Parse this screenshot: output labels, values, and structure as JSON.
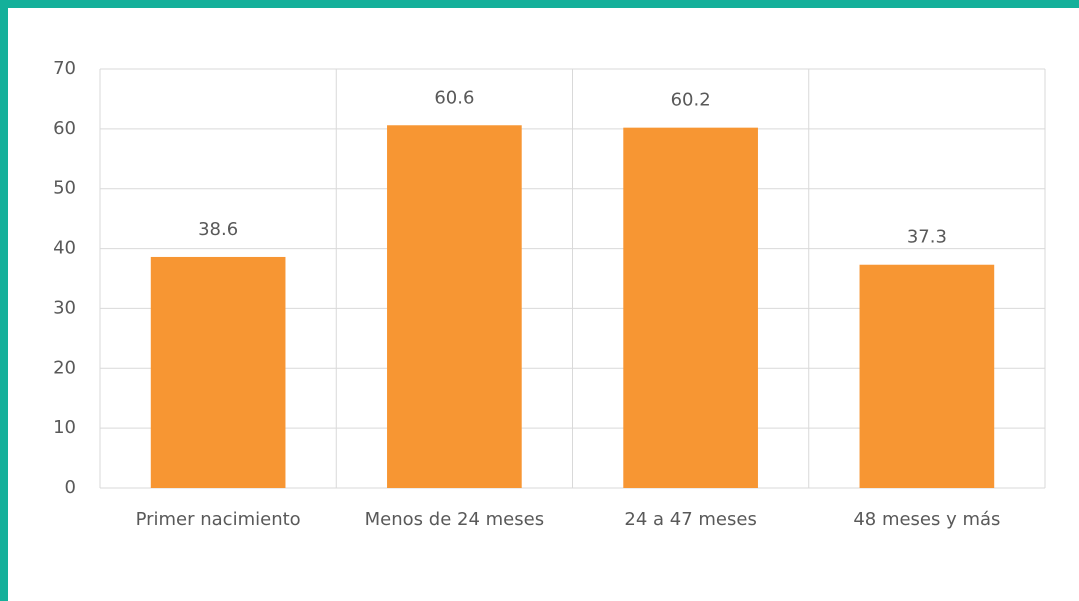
{
  "chart_data": {
    "type": "bar",
    "categories": [
      "Primer nacimiento",
      "Menos de 24 meses",
      "24 a 47 meses",
      "48 meses y más"
    ],
    "values": [
      38.6,
      60.6,
      60.2,
      37.3
    ],
    "color": "#f79633",
    "ylim": [
      0,
      70
    ],
    "yticks": [
      0,
      10,
      20,
      30,
      40,
      50,
      60,
      70
    ],
    "grid": true
  }
}
